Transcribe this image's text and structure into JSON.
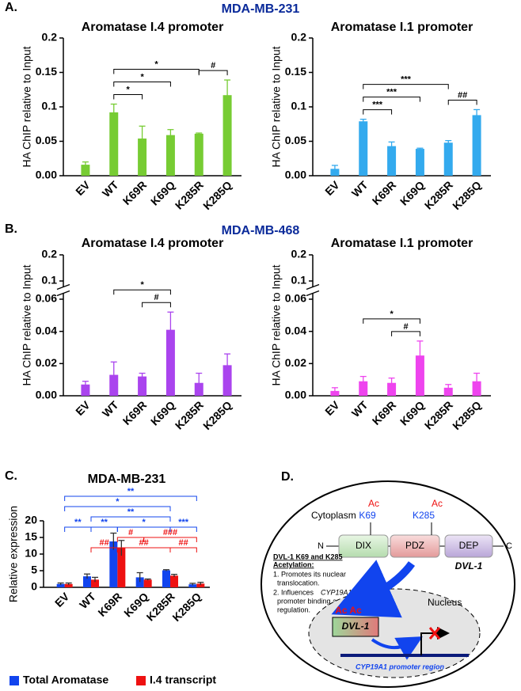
{
  "chart_data": [
    {
      "type": "bar",
      "panel": "A.",
      "subtitle": "MDA-MB-231",
      "title": "Aromatase I.4 promoter",
      "y_label": "HA ChIP relative to Input",
      "categories": [
        "EV",
        "WT",
        "K69R",
        "K69Q",
        "K285R",
        "K285Q"
      ],
      "values": [
        0.016,
        0.092,
        0.054,
        0.059,
        0.061,
        0.117
      ],
      "errors": [
        0.004,
        0.012,
        0.018,
        0.008,
        0.001,
        0.022
      ],
      "color": "#77cc33",
      "ylim": [
        0,
        0.2
      ],
      "yticks": [
        {
          "value": 0,
          "label": "0.00"
        },
        0.05,
        0.1,
        0.15,
        0.2
      ],
      "annotations": [
        {
          "label": "*",
          "from": "WT",
          "to": "K69R"
        },
        {
          "label": "*",
          "from": "WT",
          "to": "K69Q"
        },
        {
          "label": "#",
          "from": "K285R",
          "to": "K285Q"
        },
        {
          "label": "*",
          "from": "WT",
          "to": "K285R"
        }
      ]
    },
    {
      "type": "bar",
      "title": "Aromatase I.1 promoter",
      "y_label": "HA ChIP relative to Input",
      "categories": [
        "EV",
        "WT",
        "K69R",
        "K69Q",
        "K285R",
        "K285Q"
      ],
      "values": [
        0.01,
        0.079,
        0.043,
        0.039,
        0.048,
        0.088
      ],
      "errors": [
        0.005,
        0.003,
        0.006,
        0.001,
        0.003,
        0.008
      ],
      "color": "#33aaee",
      "ylim": [
        0,
        0.2
      ],
      "yticks": [
        {
          "value": 0,
          "label": "0.00"
        },
        0.05,
        0.1,
        0.15,
        0.2
      ],
      "annotations": [
        {
          "label": "***",
          "from": "WT",
          "to": "K69R"
        },
        {
          "label": "***",
          "from": "WT",
          "to": "K69Q"
        },
        {
          "label": "##",
          "from": "K285R",
          "to": "K285Q"
        },
        {
          "label": "***",
          "from": "WT",
          "to": "K285R"
        }
      ]
    },
    {
      "type": "bar",
      "panel": "B.",
      "subtitle": "MDA-MB-468",
      "title": "Aromatase I.4 promoter",
      "y_label": "HA ChIP relative to Input",
      "categories": [
        "EV",
        "WT",
        "K69R",
        "K69Q",
        "K285R",
        "K285Q"
      ],
      "values": [
        0.007,
        0.013,
        0.012,
        0.041,
        0.008,
        0.019
      ],
      "errors": [
        0.002,
        0.008,
        0.002,
        0.011,
        0.006,
        0.007
      ],
      "color": "#aa44ee",
      "ylim": [
        0,
        0.2
      ],
      "broken_axis": true,
      "yticks": [
        {
          "value": 0,
          "label": "0.00"
        },
        0.02,
        0.04,
        0.06,
        0.1,
        0.2
      ],
      "annotations": [
        {
          "label": "#",
          "from": "K69R",
          "to": "K69Q"
        },
        {
          "label": "*",
          "from": "WT",
          "to": "K69Q"
        }
      ]
    },
    {
      "type": "bar",
      "title": "Aromatase I.1 promoter",
      "y_label": "HA ChIP relative to Input",
      "categories": [
        "EV",
        "WT",
        "K69R",
        "K69Q",
        "K285R",
        "K285Q"
      ],
      "values": [
        0.003,
        0.009,
        0.008,
        0.025,
        0.005,
        0.009
      ],
      "errors": [
        0.002,
        0.003,
        0.003,
        0.009,
        0.002,
        0.005
      ],
      "color": "#ee44ee",
      "ylim": [
        0,
        0.2
      ],
      "broken_axis": true,
      "yticks": [
        {
          "value": 0,
          "label": "0.00"
        },
        0.02,
        0.04,
        0.06,
        0.1,
        0.2
      ],
      "annotations": [
        {
          "label": "#",
          "from": "K69R",
          "to": "K69Q"
        },
        {
          "label": "*",
          "from": "WT",
          "to": "K69Q"
        }
      ]
    },
    {
      "type": "grouped_bar",
      "panel": "C.",
      "title": "MDA-MB-231",
      "y_label": "Relative expression",
      "categories": [
        "EV",
        "WT",
        "K69R",
        "K69Q",
        "K285R",
        "K285Q"
      ],
      "series": [
        {
          "name": "Total Aromatase",
          "color": "#1144ee",
          "values": [
            1.0,
            3.3,
            13.8,
            3.0,
            5.1,
            0.9
          ],
          "errors": [
            0.3,
            0.7,
            2.5,
            1.4,
            0.2,
            0.3
          ]
        },
        {
          "name": "I.4 transcript",
          "color": "#ee1111",
          "values": [
            1.0,
            2.3,
            11.8,
            2.3,
            3.5,
            1.1
          ],
          "errors": [
            0.3,
            0.7,
            2.3,
            0.2,
            0.4,
            0.4
          ]
        }
      ],
      "ylim": [
        0,
        20
      ],
      "yticks": [
        0,
        5,
        10,
        15,
        20
      ],
      "annotations": [
        {
          "label": "##",
          "from": "K69R",
          "to": "K285R",
          "color": "#ee1111"
        },
        {
          "label": "##",
          "from": "K285R",
          "to": "K285Q",
          "color": "#ee1111"
        },
        {
          "label": "##",
          "from": "WT",
          "to": "K69R",
          "color": "#ee1111"
        },
        {
          "label": "#",
          "from": "K69R",
          "to": "K69Q",
          "color": "#ee1111"
        },
        {
          "label": "###",
          "from": "K69Q",
          "to": "K285Q",
          "color": "#ee1111"
        },
        {
          "label": "**",
          "from": "EV",
          "to": "WT",
          "color": "#1144ee"
        },
        {
          "label": "**",
          "from": "WT",
          "to": "K69R",
          "color": "#1144ee"
        },
        {
          "label": "*",
          "from": "K69R",
          "to": "K285R",
          "color": "#1144ee"
        },
        {
          "label": "**",
          "from": "WT",
          "to": "K285R",
          "color": "#1144ee"
        },
        {
          "label": "*",
          "from": "EV",
          "to": "K285R",
          "color": "#1144ee"
        },
        {
          "label": "***",
          "from": "K285R",
          "to": "K285Q",
          "color": "#1144ee"
        },
        {
          "label": "**",
          "from": "EV",
          "to": "K285Q",
          "color": "#1144ee"
        }
      ]
    }
  ],
  "diagram": {
    "panel": "D.",
    "cytoplasm": "Cytoplasm",
    "sites": [
      {
        "residue": "K69",
        "mark": "Ac"
      },
      {
        "residue": "K285",
        "mark": "Ac"
      }
    ],
    "protein": {
      "n_term": "N",
      "domains": [
        "DIX",
        "PDZ",
        "DEP"
      ],
      "c_term": "C",
      "name": "DVL-1"
    },
    "note": [
      [
        "DVL-1 K69 and K285"
      ],
      [
        "Acetylation:"
      ],
      [
        "1. Promotes its nuclear"
      ],
      [
        "translocation."
      ],
      [
        "2. Influences ",
        "CYP19A1"
      ],
      [
        "promoter binding and its"
      ],
      [
        "regulation."
      ]
    ],
    "nucleus": {
      "label": "Nucleus",
      "marks": "Ac Ac",
      "protein": "DVL-1",
      "promoter": "CYP19A1 promoter region"
    }
  }
}
